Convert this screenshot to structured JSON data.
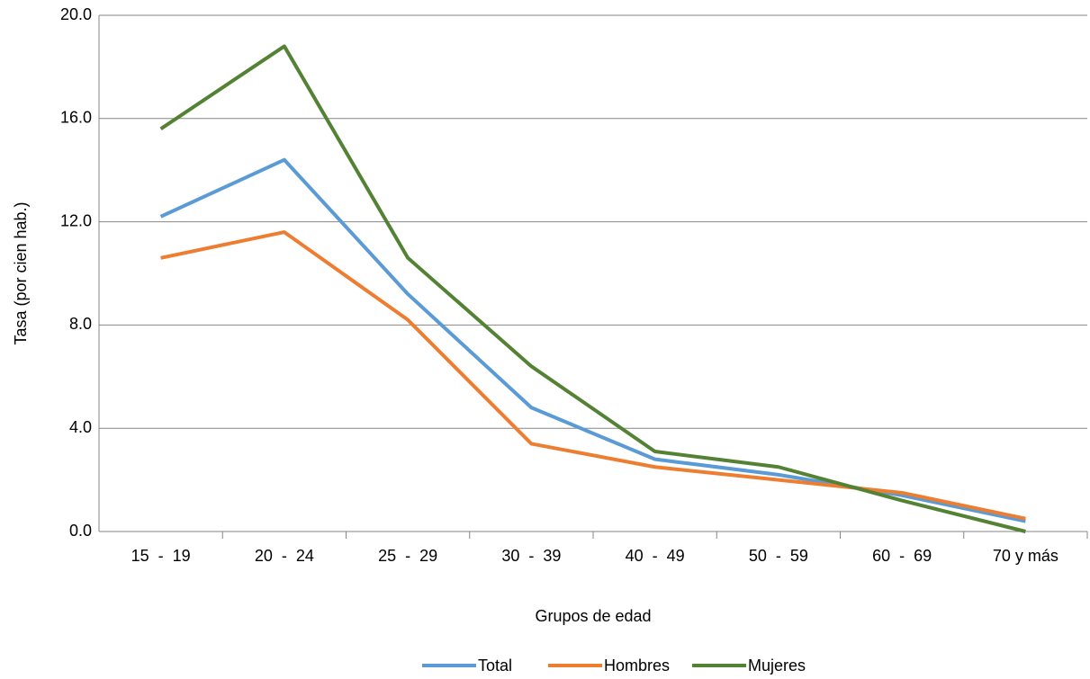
{
  "chart_data": {
    "type": "line",
    "y_label": "Tasa (por cien hab.)",
    "x_label": "Grupos de edad",
    "categories": [
      "15  -  19",
      "20  -  24",
      "25  -  29",
      "30  -  39",
      "40  -  49",
      "50  -  59",
      "60  -  69",
      "70 y más"
    ],
    "series": [
      {
        "name": "Total",
        "color": "#5b9bd5",
        "values": [
          12.2,
          14.4,
          9.2,
          4.8,
          2.8,
          2.2,
          1.4,
          0.4
        ]
      },
      {
        "name": "Hombres",
        "color": "#ed7d31",
        "values": [
          10.6,
          11.6,
          8.2,
          3.4,
          2.5,
          2.0,
          1.5,
          0.5
        ]
      },
      {
        "name": "Mujeres",
        "color": "#548235",
        "values": [
          15.6,
          18.8,
          10.6,
          6.4,
          3.1,
          2.5,
          1.2,
          0.0
        ]
      }
    ],
    "ylim": [
      0,
      20
    ],
    "yticks": [
      {
        "value": 0,
        "label": "0.0"
      },
      {
        "value": 4,
        "label": "4.0"
      },
      {
        "value": 8,
        "label": "8.0"
      },
      {
        "value": 12,
        "label": "12.0"
      },
      {
        "value": 16,
        "label": "16.0"
      },
      {
        "value": 20,
        "label": "20.0"
      }
    ],
    "grid": true,
    "legend": "bottom"
  }
}
